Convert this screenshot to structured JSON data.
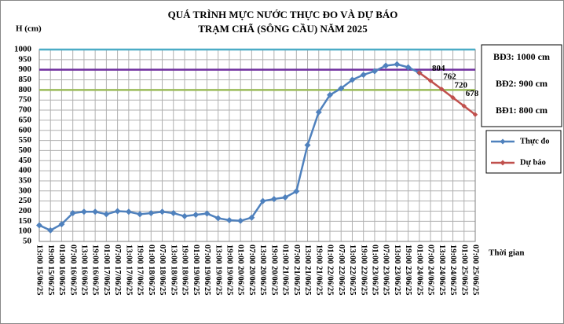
{
  "chart_data": {
    "type": "line",
    "title": "QUÁ TRÌNH MỰC NƯỚC THỰC ĐO VÀ DỰ BÁO",
    "subtitle": "TRẠM CHÃ (SÔNG CẦU) NĂM 2025",
    "y_label": "H (cm)",
    "x_label": "Thời gian",
    "categories": [
      "13:00 15/06/25",
      "19:00 15/06/25",
      "01:00 16/06/25",
      "07:00 16/06/25",
      "13:00 16/06/25",
      "19:00 16/06/25",
      "01:00 17/06/25",
      "07:00 17/06/25",
      "13:00 17/06/25",
      "19:00 17/06/25",
      "01:00 18/06/25",
      "07:00 18/06/25",
      "13:00 18/06/25",
      "19:00 18/06/25",
      "01:00 19/06/25",
      "07:00 19/06/25",
      "13:00 19/06/25",
      "19:00 19/06/25",
      "01:00 20/06/25",
      "07:00 20/06/25",
      "13:00 20/06/25",
      "19:00 20/06/25",
      "01:00 21/06/25",
      "07:00 21/06/25",
      "13:00 21/06/25",
      "19:00 21/06/25",
      "01:00 22/06/25",
      "07:00 22/06/25",
      "13:00 22/06/25",
      "19:00 22/06/25",
      "01:00 23/06/25",
      "07:00 23/06/25",
      "13:00 23/06/25",
      "19:00 23/06/25",
      "01:00 24/06/25",
      "07:00 24/06/25",
      "13:00 24/06/25",
      "19:00 24/06/25",
      "01:00 25/06/25",
      "07:00 25/06/25"
    ],
    "series": [
      {
        "name": "Thực đo",
        "color": "#4f81bd",
        "values": [
          130,
          105,
          135,
          190,
          197,
          197,
          185,
          200,
          197,
          185,
          190,
          197,
          190,
          175,
          182,
          188,
          165,
          155,
          152,
          168,
          250,
          260,
          268,
          298,
          527,
          690,
          775,
          808,
          850,
          875,
          893,
          920,
          927,
          912,
          885,
          null,
          null,
          null,
          null,
          null
        ]
      },
      {
        "name": "Dự báo",
        "color": "#c0504d",
        "values": [
          null,
          null,
          null,
          null,
          null,
          null,
          null,
          null,
          null,
          null,
          null,
          null,
          null,
          null,
          null,
          null,
          null,
          null,
          null,
          null,
          null,
          null,
          null,
          null,
          null,
          null,
          null,
          null,
          null,
          null,
          null,
          null,
          null,
          null,
          885,
          845,
          804,
          762,
          720,
          678
        ],
        "value_labels": [
          null,
          null,
          null,
          null,
          null,
          null,
          null,
          null,
          null,
          null,
          null,
          null,
          null,
          null,
          null,
          null,
          null,
          null,
          null,
          null,
          null,
          null,
          null,
          null,
          null,
          null,
          null,
          null,
          null,
          null,
          null,
          null,
          null,
          null,
          null,
          null,
          "804",
          "762",
          "720",
          "678"
        ]
      }
    ],
    "thresholds": [
      {
        "label": "BĐ3: 1000 cm",
        "value": 1000,
        "color": "#4bacc6"
      },
      {
        "label": "BĐ2: 900 cm",
        "value": 900,
        "color": "#7030a0"
      },
      {
        "label": "BĐ1: 800 cm",
        "value": 800,
        "color": "#9bbb59"
      }
    ],
    "ylim": [
      50,
      1000
    ],
    "yticks": [
      50,
      100,
      150,
      200,
      250,
      300,
      350,
      400,
      450,
      500,
      550,
      600,
      650,
      700,
      750,
      800,
      850,
      900,
      950,
      1000
    ],
    "grid": true
  }
}
